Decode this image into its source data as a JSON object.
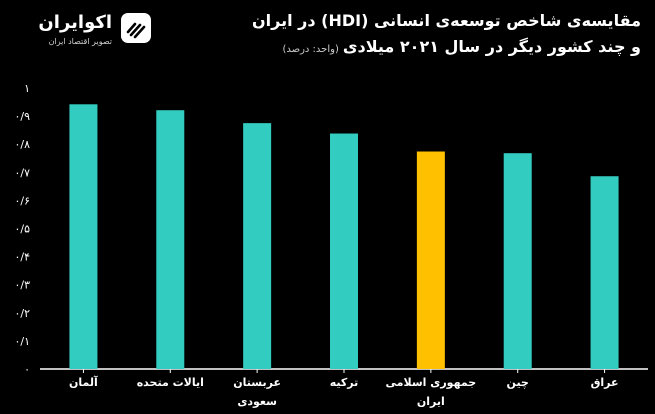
{
  "logo": {
    "name": "اکوایران",
    "tagline": "تصویر اقتصاد ایران"
  },
  "title": {
    "line1": "مقایسه‌ی شاخص توسعه‌ی انسانی (HDI) در ایران",
    "line2": "و چند کشور دیگر در سال ۲۰۲۱ میلادی",
    "unit": "(واحد: درصد)"
  },
  "colors": {
    "bar": "#33CCC0",
    "highlight": "#FFC000",
    "background": "#000000",
    "axis": "#ffffff"
  },
  "chart_data": {
    "type": "bar",
    "title": "مقایسه‌ی شاخص توسعه‌ی انسانی (HDI) در ایران و چند کشور دیگر در سال ۲۰۲۱ میلادی",
    "xlabel": "",
    "ylabel": "",
    "ylim": [
      0,
      1
    ],
    "yticks": [
      0,
      0.1,
      0.2,
      0.3,
      0.4,
      0.5,
      0.6,
      0.7,
      0.8,
      0.9,
      1
    ],
    "ytick_labels": [
      "۰",
      "۰/۱",
      "۰/۲",
      "۰/۳",
      "۰/۴",
      "۰/۵",
      "۰/۶",
      "۰/۷",
      "۰/۸",
      "۰/۹",
      "۱"
    ],
    "categories": [
      [
        "آلمان"
      ],
      [
        "ایالات متحده"
      ],
      [
        "عربستان",
        "سعودی"
      ],
      [
        "ترکیه"
      ],
      [
        "جمهوری اسلامی",
        "ایران"
      ],
      [
        "چین"
      ],
      [
        "عراق"
      ]
    ],
    "values": [
      0.942,
      0.921,
      0.875,
      0.838,
      0.774,
      0.768,
      0.686
    ],
    "highlight_index": 4,
    "grid": false,
    "legend": "none"
  }
}
